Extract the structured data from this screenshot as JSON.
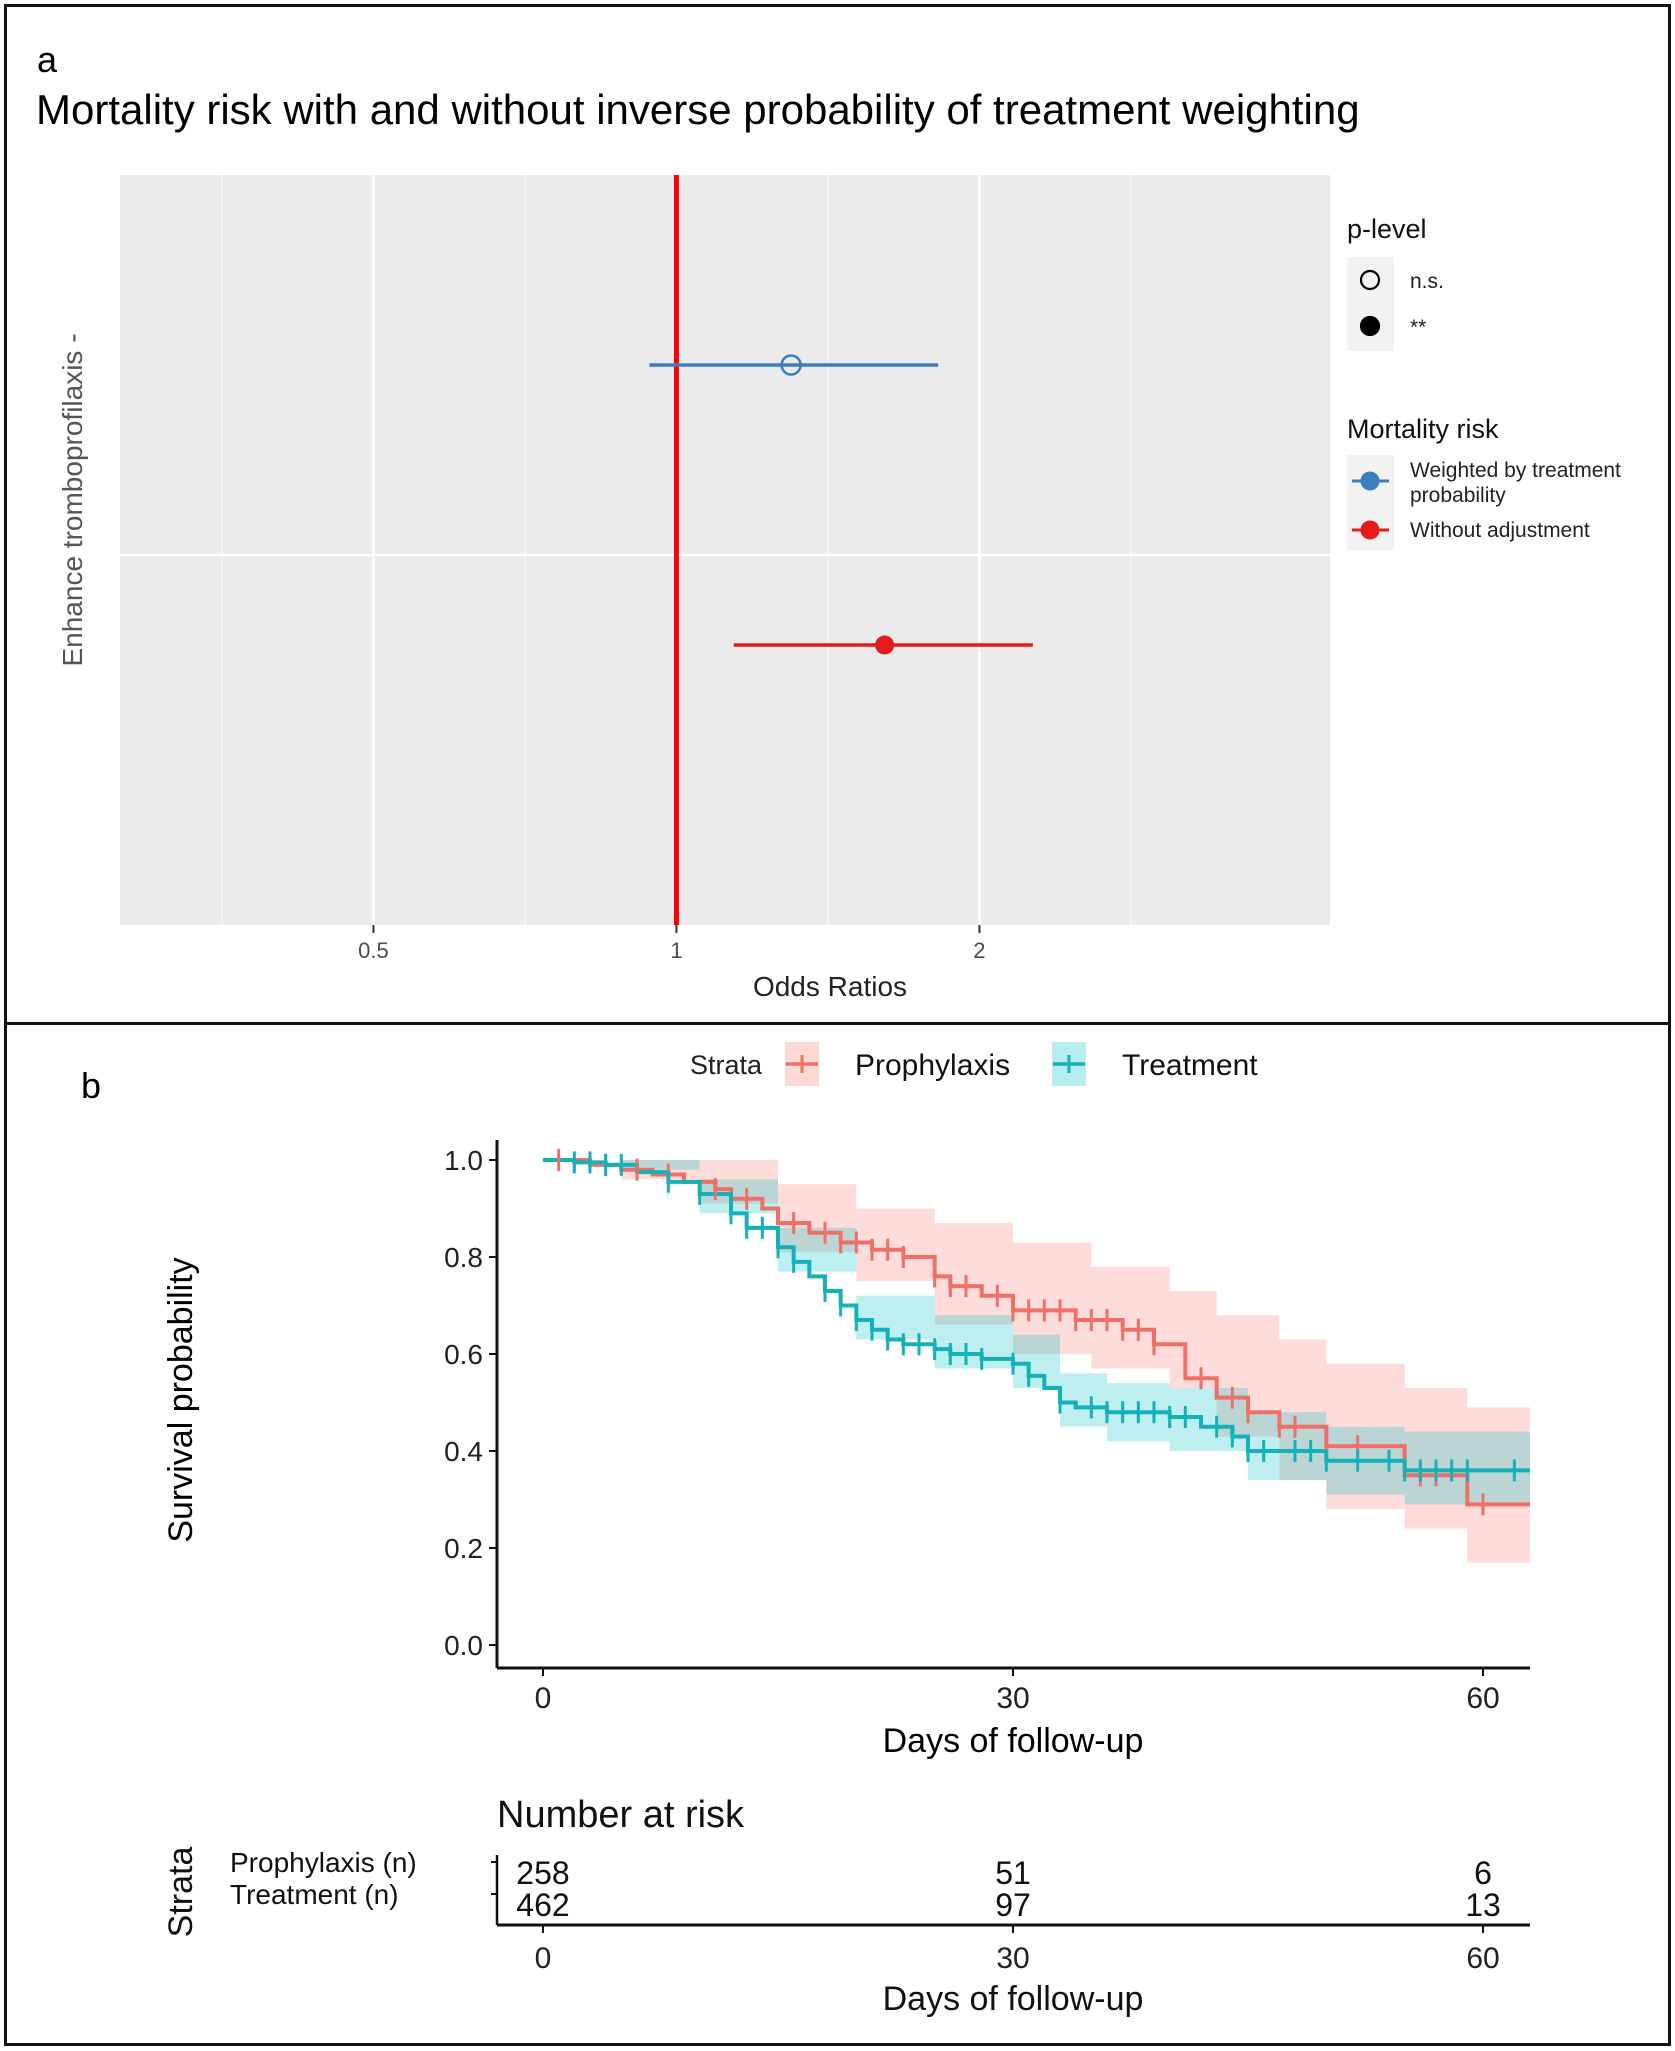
{
  "panel_a": {
    "label": "a",
    "title": "Mortality risk with and without inverse probability of treatment weighting"
  },
  "panel_b": {
    "label": "b"
  },
  "chart_data": [
    {
      "type": "scatter",
      "subtype": "forest",
      "title": "Mortality risk with and without inverse probability of treatment weighting",
      "xlabel": "Odds Ratios",
      "ylabel": "Enhance tromboprofilaxis -",
      "x_scale": "log",
      "xlim": [
        0.28,
        4.46
      ],
      "x_ticks": [
        0.5,
        1,
        2
      ],
      "x_tick_labels": [
        "0.5",
        "1",
        "2"
      ],
      "reference_line": {
        "x": 1,
        "color": "#ff0000"
      },
      "grid": true,
      "background": "#ebebeb",
      "series": [
        {
          "name": "Weighted by treatment probability",
          "estimate": 1.3,
          "ci_low": 0.94,
          "ci_high": 1.82,
          "p_level": "n.s.",
          "filled": false,
          "color": "#3a7ebf"
        },
        {
          "name": "Without adjustment",
          "estimate": 1.61,
          "ci_low": 1.14,
          "ci_high": 2.26,
          "p_level": "**",
          "filled": true,
          "color": "#e41a1c"
        }
      ],
      "legends": [
        {
          "title": "p-level",
          "entries": [
            {
              "label": "n.s.",
              "symbol": "open-circle"
            },
            {
              "label": "**",
              "symbol": "filled-circle"
            }
          ]
        },
        {
          "title": "Mortality risk",
          "entries": [
            {
              "label_lines": [
                "Weighted by treatment",
                "probability"
              ],
              "color": "#3a7ebf"
            },
            {
              "label_lines": [
                "Without adjustment"
              ],
              "color": "#e41a1c"
            }
          ]
        }
      ],
      "legend_position": "right"
    },
    {
      "type": "line",
      "subtype": "kaplan-meier",
      "xlabel": "Days of follow-up",
      "ylabel": "Survival probability",
      "xlim": [
        -2,
        63
      ],
      "ylim": [
        -0.045,
        1.03
      ],
      "x_ticks": [
        0,
        30,
        60
      ],
      "y_ticks": [
        0.0,
        0.2,
        0.4,
        0.6,
        0.8,
        1.0
      ],
      "y_tick_labels": [
        "0.0",
        "0.2",
        "0.4",
        "0.6",
        "0.8",
        "1.0"
      ],
      "legend_title": "Strata",
      "legend_position": "top",
      "series": [
        {
          "name": "Prophylaxis",
          "color": "#f07068",
          "band_color": "#f8766d",
          "steps": [
            [
              0,
              1.0
            ],
            [
              3,
              0.99
            ],
            [
              5,
              0.98
            ],
            [
              7,
              0.97
            ],
            [
              9,
              0.955
            ],
            [
              11,
              0.94
            ],
            [
              12,
              0.92
            ],
            [
              14,
              0.9
            ],
            [
              15,
              0.87
            ],
            [
              17,
              0.85
            ],
            [
              19,
              0.83
            ],
            [
              21,
              0.815
            ],
            [
              23,
              0.8
            ],
            [
              25,
              0.76
            ],
            [
              26,
              0.74
            ],
            [
              28,
              0.72
            ],
            [
              30,
              0.69
            ],
            [
              34,
              0.67
            ],
            [
              37,
              0.65
            ],
            [
              39,
              0.62
            ],
            [
              41,
              0.55
            ],
            [
              43,
              0.51
            ],
            [
              45,
              0.48
            ],
            [
              47,
              0.45
            ],
            [
              50,
              0.41
            ],
            [
              55,
              0.35
            ],
            [
              59,
              0.29
            ],
            [
              63,
              0.29
            ]
          ],
          "ci_low": [
            [
              0,
              1.0
            ],
            [
              5,
              0.96
            ],
            [
              10,
              0.91
            ],
            [
              15,
              0.81
            ],
            [
              20,
              0.75
            ],
            [
              25,
              0.66
            ],
            [
              30,
              0.6
            ],
            [
              35,
              0.57
            ],
            [
              40,
              0.53
            ],
            [
              43,
              0.43
            ],
            [
              47,
              0.34
            ],
            [
              50,
              0.28
            ],
            [
              55,
              0.24
            ],
            [
              59,
              0.17
            ],
            [
              63,
              0.17
            ]
          ],
          "ci_high": [
            [
              0,
              1.0
            ],
            [
              5,
              1.0
            ],
            [
              10,
              1.0
            ],
            [
              15,
              0.95
            ],
            [
              20,
              0.9
            ],
            [
              25,
              0.87
            ],
            [
              30,
              0.83
            ],
            [
              35,
              0.78
            ],
            [
              40,
              0.73
            ],
            [
              43,
              0.68
            ],
            [
              47,
              0.63
            ],
            [
              50,
              0.58
            ],
            [
              55,
              0.53
            ],
            [
              59,
              0.49
            ],
            [
              63,
              0.49
            ]
          ],
          "censor_times": [
            1,
            4,
            6,
            8,
            11,
            13,
            16,
            18,
            19,
            20,
            21,
            22,
            23,
            25,
            26,
            27,
            29,
            30,
            31,
            32,
            33,
            34,
            35,
            36,
            37,
            38,
            39,
            42,
            44,
            45,
            47,
            48,
            50,
            52,
            56,
            57,
            60
          ]
        },
        {
          "name": "Treatment",
          "color": "#13b2b8",
          "band_color": "#00bfc4",
          "steps": [
            [
              0,
              1.0
            ],
            [
              2,
              0.995
            ],
            [
              4,
              0.99
            ],
            [
              6,
              0.975
            ],
            [
              8,
              0.955
            ],
            [
              10,
              0.93
            ],
            [
              12,
              0.89
            ],
            [
              13,
              0.86
            ],
            [
              15,
              0.82
            ],
            [
              16,
              0.79
            ],
            [
              17,
              0.76
            ],
            [
              18,
              0.73
            ],
            [
              19,
              0.7
            ],
            [
              20,
              0.67
            ],
            [
              21,
              0.65
            ],
            [
              22,
              0.63
            ],
            [
              23,
              0.62
            ],
            [
              25,
              0.61
            ],
            [
              26,
              0.6
            ],
            [
              28,
              0.59
            ],
            [
              30,
              0.58
            ],
            [
              31,
              0.555
            ],
            [
              32,
              0.53
            ],
            [
              33,
              0.5
            ],
            [
              34,
              0.49
            ],
            [
              36,
              0.48
            ],
            [
              40,
              0.47
            ],
            [
              42,
              0.45
            ],
            [
              44,
              0.43
            ],
            [
              45,
              0.4
            ],
            [
              50,
              0.38
            ],
            [
              55,
              0.36
            ],
            [
              63,
              0.36
            ]
          ],
          "ci_low": [
            [
              0,
              1.0
            ],
            [
              5,
              0.98
            ],
            [
              10,
              0.89
            ],
            [
              15,
              0.77
            ],
            [
              20,
              0.63
            ],
            [
              25,
              0.57
            ],
            [
              30,
              0.53
            ],
            [
              33,
              0.45
            ],
            [
              36,
              0.42
            ],
            [
              40,
              0.4
            ],
            [
              45,
              0.34
            ],
            [
              50,
              0.31
            ],
            [
              55,
              0.29
            ],
            [
              63,
              0.29
            ]
          ],
          "ci_high": [
            [
              0,
              1.0
            ],
            [
              5,
              1.0
            ],
            [
              10,
              0.96
            ],
            [
              15,
              0.86
            ],
            [
              20,
              0.72
            ],
            [
              25,
              0.68
            ],
            [
              30,
              0.64
            ],
            [
              33,
              0.56
            ],
            [
              36,
              0.54
            ],
            [
              40,
              0.53
            ],
            [
              45,
              0.48
            ],
            [
              50,
              0.45
            ],
            [
              55,
              0.44
            ],
            [
              63,
              0.44
            ]
          ],
          "censor_times": [
            2,
            3,
            4,
            5,
            8,
            10,
            12,
            13,
            14,
            15,
            16,
            18,
            19,
            20,
            21,
            22,
            23,
            24,
            25,
            26,
            27,
            28,
            30,
            31,
            33,
            35,
            36,
            37,
            38,
            39,
            40,
            41,
            43,
            44,
            45,
            46,
            48,
            49,
            50,
            52,
            54,
            55,
            56,
            57,
            58,
            59,
            62
          ]
        }
      ],
      "risk_table": {
        "title": "Number at risk",
        "ylabel": "Strata",
        "xlabel": "Days of follow-up",
        "times": [
          0,
          30,
          60
        ],
        "rows": [
          {
            "label": "Prophylaxis (n)",
            "values": [
              "258",
              "51",
              "6"
            ]
          },
          {
            "label": "Treatment (n)",
            "values": [
              "462",
              "97",
              "13"
            ]
          }
        ]
      }
    }
  ]
}
